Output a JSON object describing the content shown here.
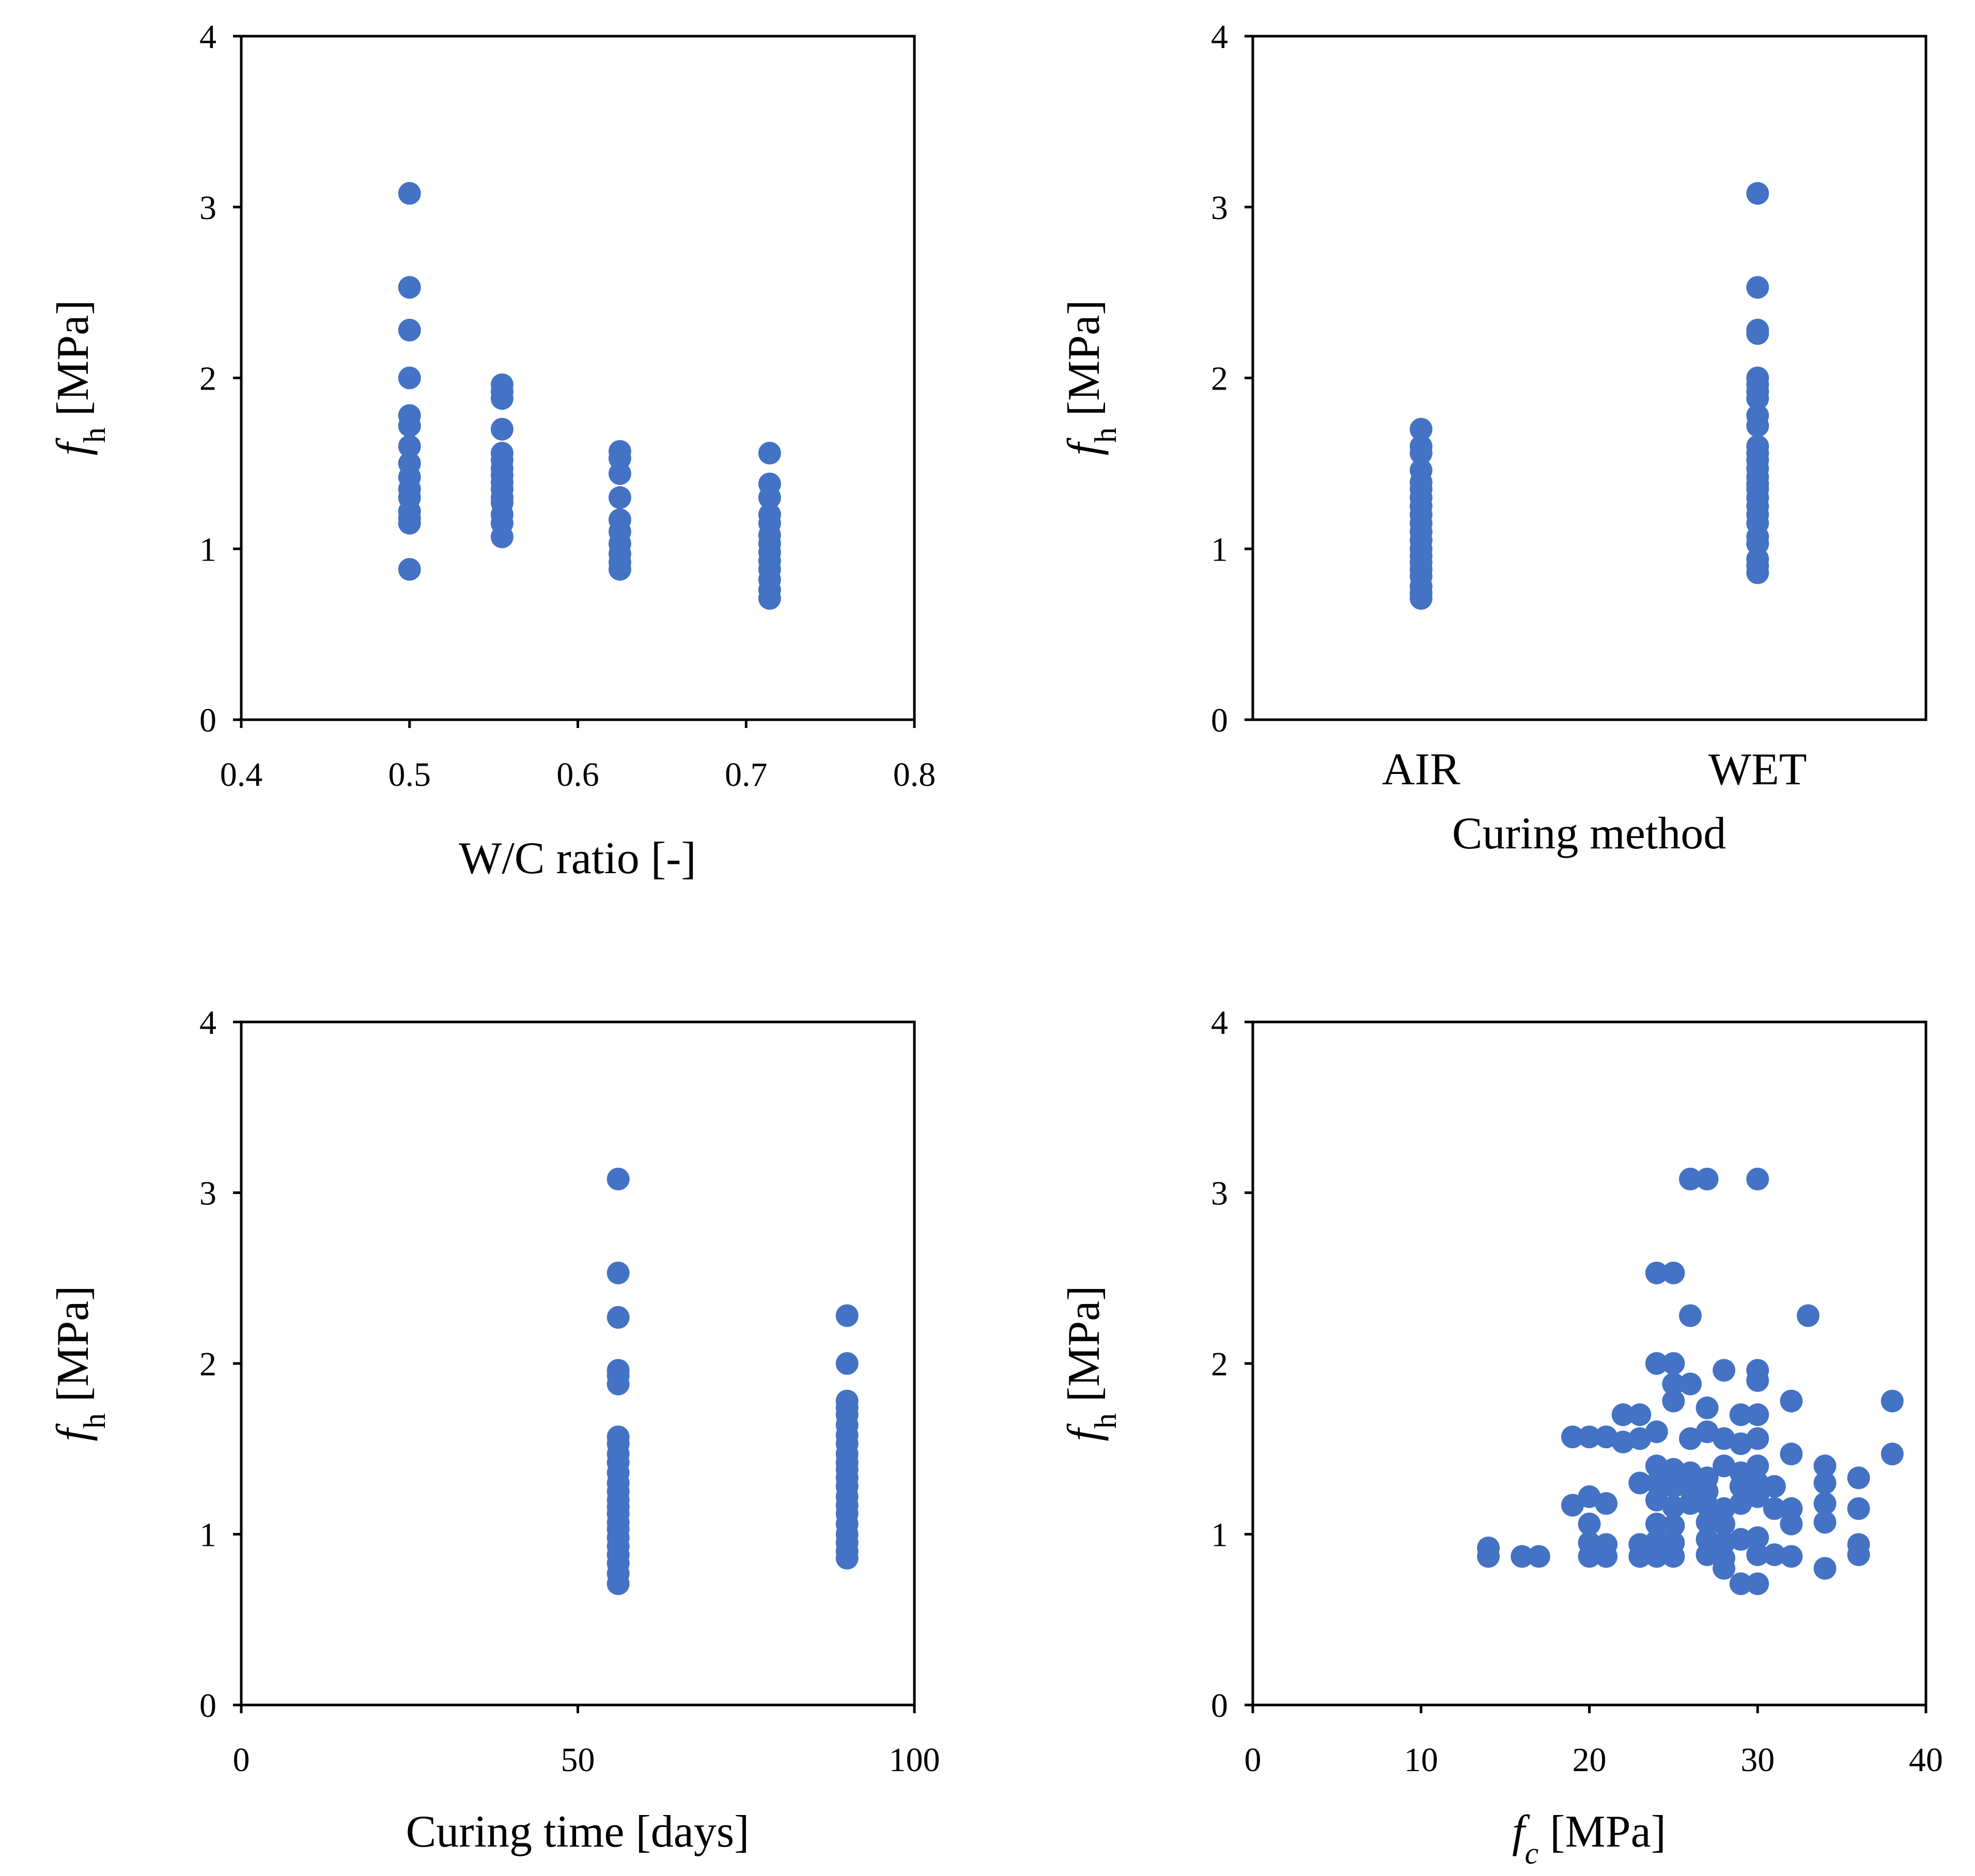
{
  "colors": {
    "marker": "#4472C4",
    "axis": "#000000",
    "background": "#ffffff"
  },
  "chart_data": [
    {
      "id": "wc",
      "type": "scatter",
      "title": "",
      "xlabel": "W/C ratio  [-]",
      "ylabel": {
        "main": "f",
        "sub": "h",
        "unit": " [MPa]"
      },
      "xlim": [
        0.4,
        0.8
      ],
      "ylim": [
        0,
        4
      ],
      "xticks": [
        "0.4",
        "0.5",
        "0.6",
        "0.7",
        "0.8"
      ],
      "yticks": [
        "0",
        "1",
        "2",
        "3",
        "4"
      ],
      "points": [
        [
          0.5,
          3.08
        ],
        [
          0.5,
          2.53
        ],
        [
          0.5,
          2.28
        ],
        [
          0.5,
          2.0
        ],
        [
          0.5,
          1.78
        ],
        [
          0.5,
          1.72
        ],
        [
          0.5,
          1.6
        ],
        [
          0.5,
          1.5
        ],
        [
          0.5,
          1.42
        ],
        [
          0.5,
          1.35
        ],
        [
          0.5,
          1.3
        ],
        [
          0.5,
          1.22
        ],
        [
          0.5,
          1.18
        ],
        [
          0.5,
          1.15
        ],
        [
          0.5,
          0.88
        ],
        [
          0.555,
          1.96
        ],
        [
          0.555,
          1.92
        ],
        [
          0.555,
          1.88
        ],
        [
          0.555,
          1.7
        ],
        [
          0.555,
          1.56
        ],
        [
          0.555,
          1.52
        ],
        [
          0.555,
          1.47
        ],
        [
          0.555,
          1.43
        ],
        [
          0.555,
          1.39
        ],
        [
          0.555,
          1.35
        ],
        [
          0.555,
          1.3
        ],
        [
          0.555,
          1.27
        ],
        [
          0.555,
          1.2
        ],
        [
          0.555,
          1.15
        ],
        [
          0.555,
          1.07
        ],
        [
          0.625,
          1.57
        ],
        [
          0.625,
          1.53
        ],
        [
          0.625,
          1.44
        ],
        [
          0.625,
          1.3
        ],
        [
          0.625,
          1.17
        ],
        [
          0.625,
          1.1
        ],
        [
          0.625,
          1.03
        ],
        [
          0.625,
          0.97
        ],
        [
          0.625,
          0.92
        ],
        [
          0.625,
          0.88
        ],
        [
          0.714,
          1.56
        ],
        [
          0.714,
          1.38
        ],
        [
          0.714,
          1.3
        ],
        [
          0.714,
          1.2
        ],
        [
          0.714,
          1.15
        ],
        [
          0.714,
          1.08
        ],
        [
          0.714,
          1.03
        ],
        [
          0.714,
          0.98
        ],
        [
          0.714,
          0.93
        ],
        [
          0.714,
          0.88
        ],
        [
          0.714,
          0.82
        ],
        [
          0.714,
          0.76
        ],
        [
          0.714,
          0.71
        ]
      ]
    },
    {
      "id": "curing",
      "type": "scatter",
      "title": "",
      "xlabel": "Curing method",
      "ylabel": {
        "main": "f",
        "sub": "h",
        "unit": " [MPa]"
      },
      "ylim": [
        0,
        4
      ],
      "categories": [
        "AIR",
        "WET"
      ],
      "yticks": [
        "0",
        "1",
        "2",
        "3",
        "4"
      ],
      "series": [
        {
          "name": "AIR",
          "values": [
            1.7,
            1.6,
            1.56,
            1.46,
            1.39,
            1.35,
            1.3,
            1.25,
            1.2,
            1.15,
            1.1,
            1.05,
            1.0,
            0.96,
            0.92,
            0.88,
            0.84,
            0.78,
            0.74,
            0.71
          ]
        },
        {
          "name": "WET",
          "values": [
            3.08,
            2.53,
            2.28,
            2.26,
            2.0,
            1.96,
            1.92,
            1.88,
            1.78,
            1.72,
            1.6,
            1.56,
            1.52,
            1.47,
            1.42,
            1.38,
            1.35,
            1.3,
            1.25,
            1.2,
            1.15,
            1.07,
            1.03,
            0.94,
            0.9,
            0.86
          ]
        }
      ]
    },
    {
      "id": "time",
      "type": "scatter",
      "title": "",
      "xlabel": "Curing time [days]",
      "ylabel": {
        "main": "f",
        "sub": "h",
        "unit": " [MPa]"
      },
      "xlim": [
        0,
        100
      ],
      "ylim": [
        0,
        4
      ],
      "xticks": [
        "0",
        "50",
        "100"
      ],
      "yticks": [
        "0",
        "1",
        "2",
        "3",
        "4"
      ],
      "points": [
        [
          56,
          3.08
        ],
        [
          56,
          2.53
        ],
        [
          56,
          2.27
        ],
        [
          56,
          1.96
        ],
        [
          56,
          1.93
        ],
        [
          56,
          1.88
        ],
        [
          56,
          1.57
        ],
        [
          56,
          1.53
        ],
        [
          56,
          1.47
        ],
        [
          56,
          1.42
        ],
        [
          56,
          1.36
        ],
        [
          56,
          1.3
        ],
        [
          56,
          1.25
        ],
        [
          56,
          1.2
        ],
        [
          56,
          1.16
        ],
        [
          56,
          1.12
        ],
        [
          56,
          1.07
        ],
        [
          56,
          1.03
        ],
        [
          56,
          0.98
        ],
        [
          56,
          0.93
        ],
        [
          56,
          0.88
        ],
        [
          56,
          0.83
        ],
        [
          56,
          0.77
        ],
        [
          56,
          0.71
        ],
        [
          90,
          2.28
        ],
        [
          90,
          2.0
        ],
        [
          90,
          1.78
        ],
        [
          90,
          1.74
        ],
        [
          90,
          1.7
        ],
        [
          90,
          1.64
        ],
        [
          90,
          1.58
        ],
        [
          90,
          1.53
        ],
        [
          90,
          1.47
        ],
        [
          90,
          1.42
        ],
        [
          90,
          1.38
        ],
        [
          90,
          1.33
        ],
        [
          90,
          1.28
        ],
        [
          90,
          1.22
        ],
        [
          90,
          1.17
        ],
        [
          90,
          1.12
        ],
        [
          90,
          1.06
        ],
        [
          90,
          1.0
        ],
        [
          90,
          0.95
        ],
        [
          90,
          0.9
        ],
        [
          90,
          0.86
        ]
      ]
    },
    {
      "id": "fc",
      "type": "scatter",
      "title": "",
      "xlabel": {
        "main": "f",
        "sub": "c",
        "unit": " [MPa]"
      },
      "ylabel": {
        "main": "f",
        "sub": "h",
        "unit": " [MPa]"
      },
      "xlim": [
        0,
        40
      ],
      "ylim": [
        0,
        4
      ],
      "xticks": [
        "0",
        "10",
        "20",
        "30",
        "40"
      ],
      "yticks": [
        "0",
        "1",
        "2",
        "3",
        "4"
      ],
      "points": [
        [
          26,
          3.08
        ],
        [
          27,
          3.08
        ],
        [
          30,
          3.08
        ],
        [
          24,
          2.53
        ],
        [
          25,
          2.53
        ],
        [
          26,
          2.28
        ],
        [
          33,
          2.28
        ],
        [
          24,
          2.0
        ],
        [
          25,
          2.0
        ],
        [
          25,
          1.88
        ],
        [
          26,
          1.88
        ],
        [
          28,
          1.96
        ],
        [
          30,
          1.96
        ],
        [
          30,
          1.9
        ],
        [
          25,
          1.78
        ],
        [
          27,
          1.74
        ],
        [
          32,
          1.78
        ],
        [
          38,
          1.78
        ],
        [
          29,
          1.7
        ],
        [
          22,
          1.7
        ],
        [
          23,
          1.7
        ],
        [
          30,
          1.7
        ],
        [
          19,
          1.57
        ],
        [
          20,
          1.57
        ],
        [
          21,
          1.57
        ],
        [
          22,
          1.54
        ],
        [
          23,
          1.56
        ],
        [
          24,
          1.6
        ],
        [
          26,
          1.56
        ],
        [
          27,
          1.6
        ],
        [
          28,
          1.56
        ],
        [
          29,
          1.53
        ],
        [
          30,
          1.56
        ],
        [
          32,
          1.47
        ],
        [
          38,
          1.47
        ],
        [
          24,
          1.4
        ],
        [
          25,
          1.38
        ],
        [
          26,
          1.36
        ],
        [
          27,
          1.33
        ],
        [
          28,
          1.4
        ],
        [
          29,
          1.36
        ],
        [
          30,
          1.4
        ],
        [
          34,
          1.4
        ],
        [
          36,
          1.33
        ],
        [
          23,
          1.3
        ],
        [
          24,
          1.3
        ],
        [
          25,
          1.28
        ],
        [
          26,
          1.26
        ],
        [
          27,
          1.25
        ],
        [
          29,
          1.28
        ],
        [
          30,
          1.3
        ],
        [
          31,
          1.28
        ],
        [
          34,
          1.3
        ],
        [
          19,
          1.17
        ],
        [
          20,
          1.22
        ],
        [
          21,
          1.18
        ],
        [
          24,
          1.2
        ],
        [
          25,
          1.16
        ],
        [
          26,
          1.18
        ],
        [
          27,
          1.17
        ],
        [
          28,
          1.15
        ],
        [
          29,
          1.18
        ],
        [
          30,
          1.22
        ],
        [
          31,
          1.15
        ],
        [
          32,
          1.15
        ],
        [
          34,
          1.18
        ],
        [
          36,
          1.15
        ],
        [
          20,
          1.06
        ],
        [
          24,
          1.06
        ],
        [
          25,
          1.05
        ],
        [
          27,
          1.07
        ],
        [
          28,
          1.06
        ],
        [
          32,
          1.06
        ],
        [
          34,
          1.07
        ],
        [
          20,
          0.95
        ],
        [
          21,
          0.94
        ],
        [
          23,
          0.94
        ],
        [
          24,
          0.96
        ],
        [
          25,
          0.95
        ],
        [
          27,
          0.97
        ],
        [
          28,
          0.95
        ],
        [
          29,
          0.97
        ],
        [
          30,
          0.98
        ],
        [
          14,
          0.92
        ],
        [
          36,
          0.94
        ],
        [
          14,
          0.87
        ],
        [
          16,
          0.87
        ],
        [
          17,
          0.87
        ],
        [
          20,
          0.87
        ],
        [
          21,
          0.87
        ],
        [
          23,
          0.87
        ],
        [
          24,
          0.87
        ],
        [
          25,
          0.87
        ],
        [
          27,
          0.88
        ],
        [
          28,
          0.86
        ],
        [
          30,
          0.88
        ],
        [
          31,
          0.88
        ],
        [
          32,
          0.87
        ],
        [
          36,
          0.88
        ],
        [
          28,
          0.8
        ],
        [
          34,
          0.8
        ],
        [
          29,
          0.71
        ],
        [
          30,
          0.71
        ]
      ]
    }
  ]
}
